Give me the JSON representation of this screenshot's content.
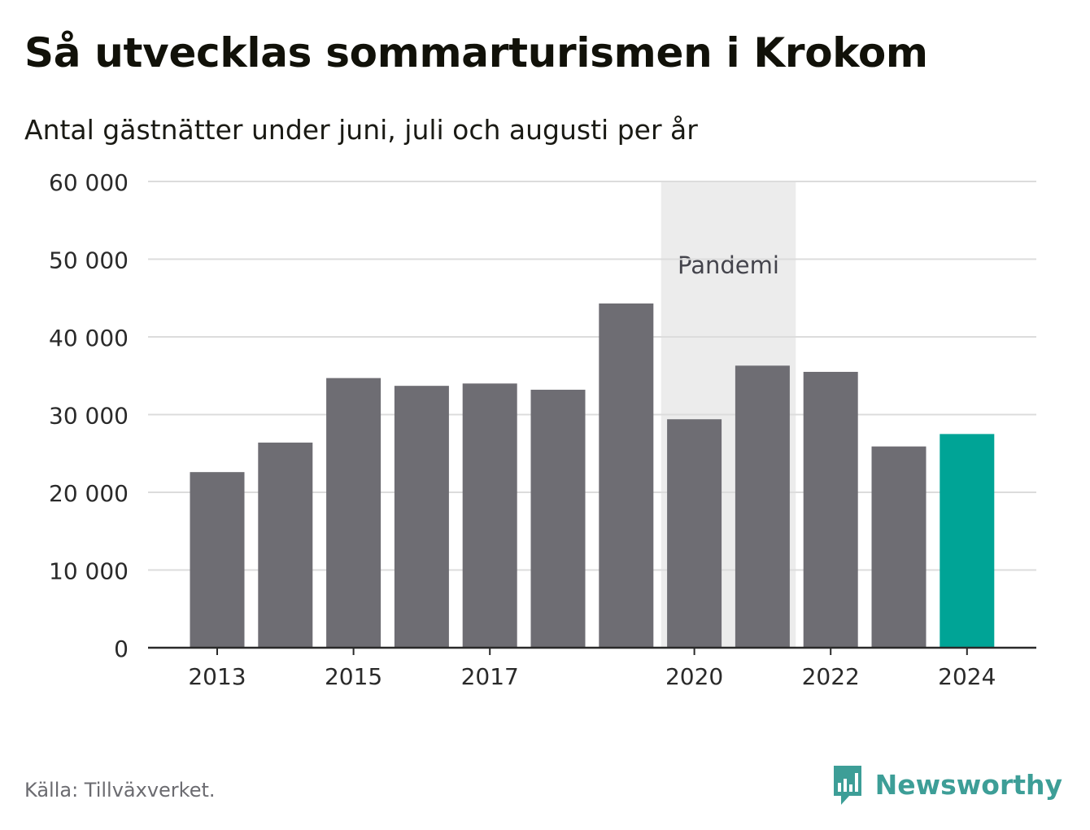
{
  "header": {
    "title": "Så utvecklas sommarturismen i Krokom",
    "subtitle": "Antal gästnätter under juni, juli och augusti per år"
  },
  "footer": {
    "source": "Källa: Tillväxverket.",
    "brand": "Newsworthy"
  },
  "colors": {
    "bar": "#6e6d73",
    "highlight": "#00a496",
    "band": "#ececec",
    "grid": "#dcdcdc",
    "axis": "#2a2a2a",
    "brand": "#3d9e97"
  },
  "icons": {
    "logo": "newsworthy-bar-chart-icon"
  },
  "chart_data": {
    "type": "bar",
    "title": "Så utvecklas sommarturismen i Krokom",
    "subtitle": "Antal gästnätter under juni, juli och augusti per år",
    "categories": [
      "2013",
      "2014",
      "2015",
      "2016",
      "2017",
      "2018",
      "2019",
      "2020",
      "2021",
      "2022",
      "2023",
      "2024"
    ],
    "values": [
      22600,
      26400,
      34700,
      33700,
      34000,
      33200,
      44300,
      29400,
      36300,
      35500,
      25900,
      27500
    ],
    "highlight_category": "2024",
    "x_tick_labels": [
      "2013",
      "2015",
      "2017",
      "2020",
      "2022",
      "2024"
    ],
    "y_ticks": [
      0,
      10000,
      20000,
      30000,
      40000,
      50000,
      60000
    ],
    "y_tick_labels": [
      "0",
      "10 000",
      "20 000",
      "30 000",
      "40 000",
      "50 000",
      "60 000"
    ],
    "ylim": [
      0,
      60000
    ],
    "xlabel": "",
    "ylabel": "",
    "grid": true,
    "annotations": [
      {
        "type": "band",
        "label": "Pandemi",
        "from": "2020",
        "to": "2021"
      }
    ]
  }
}
